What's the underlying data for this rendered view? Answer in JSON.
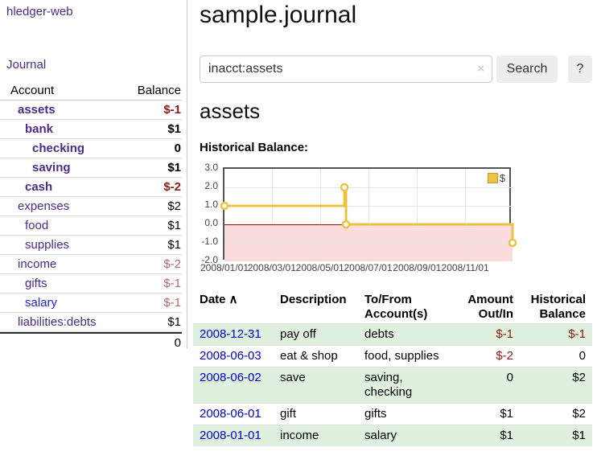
{
  "app": {
    "title": "hledger-web"
  },
  "sidebar": {
    "journal_link": "Journal",
    "table": {
      "account_header": "Account",
      "balance_header": "Balance",
      "rows": [
        {
          "name": "assets",
          "balance": "$-1",
          "level": 1,
          "bold": true,
          "neg": "strong"
        },
        {
          "name": "bank",
          "balance": "$1",
          "level": 2,
          "bold": true,
          "neg": ""
        },
        {
          "name": "checking",
          "balance": "0",
          "level": 3,
          "bold": true,
          "neg": ""
        },
        {
          "name": "saving",
          "balance": "$1",
          "level": 3,
          "bold": true,
          "neg": ""
        },
        {
          "name": "cash",
          "balance": "$-2",
          "level": 2,
          "bold": true,
          "neg": "strong"
        },
        {
          "name": "expenses",
          "balance": "$2",
          "level": 1,
          "bold": false,
          "neg": ""
        },
        {
          "name": "food",
          "balance": "$1",
          "level": 2,
          "bold": false,
          "neg": ""
        },
        {
          "name": "supplies",
          "balance": "$1",
          "level": 2,
          "bold": false,
          "neg": ""
        },
        {
          "name": "income",
          "balance": "$-2",
          "level": 1,
          "bold": false,
          "neg": "soft"
        },
        {
          "name": "gifts",
          "balance": "$-1",
          "level": 2,
          "bold": false,
          "neg": "soft"
        },
        {
          "name": "salary",
          "balance": "$-1",
          "level": 2,
          "bold": false,
          "neg": "soft",
          "link": "blue"
        },
        {
          "name": "liabilities:debts",
          "balance": "$1",
          "level": 1,
          "bold": false,
          "neg": ""
        }
      ],
      "total": "0"
    }
  },
  "header": {
    "title": "sample.journal"
  },
  "search": {
    "value": "inacct:assets",
    "clear_icon": "×",
    "button_label": "Search",
    "help_label": "?"
  },
  "account_page": {
    "title": "assets",
    "chart_label": "Historical Balance:"
  },
  "chart_data": {
    "type": "line",
    "title": "Historical Balance",
    "series": [
      {
        "name": "$",
        "color": "#edc240",
        "step": true,
        "points": [
          {
            "date": "2008-01-01",
            "day": 0,
            "value": 1
          },
          {
            "date": "2008-06-01",
            "day": 152,
            "value": 2
          },
          {
            "date": "2008-06-03",
            "day": 154,
            "value": 0
          },
          {
            "date": "2008-12-31",
            "day": 365,
            "value": -1
          }
        ]
      }
    ],
    "x_axis": {
      "range_days": [
        0,
        365
      ],
      "ticks": [
        {
          "label": "2008/01/01",
          "day": 0
        },
        {
          "label": "2008/03/01",
          "day": 60
        },
        {
          "label": "2008/05/01",
          "day": 121
        },
        {
          "label": "2008/07/01",
          "day": 182
        },
        {
          "label": "2008/09/01",
          "day": 244
        },
        {
          "label": "2008/11/01",
          "day": 305
        }
      ]
    },
    "y_axis": {
      "range": [
        -2,
        3
      ],
      "ticks": [
        "3.0",
        "2.0",
        "1.0",
        "0.0",
        "-1.0",
        "-2.0"
      ]
    },
    "legend": {
      "label": "$",
      "position": "top-right"
    },
    "grid": true,
    "negative_region_color": "#fadcdc",
    "zero_line_color": "#aa0000"
  },
  "transactions": {
    "headers": {
      "date": "Date",
      "sort_icon": "∧",
      "description": "Description",
      "accounts": "To/From Account(s)",
      "amount": "Amount Out/In",
      "balance": "Historical Balance"
    },
    "rows": [
      {
        "date": "2008-12-31",
        "description": "pay off",
        "accounts": "debts",
        "amount": "$-1",
        "amount_negative": true,
        "balance": "$-1",
        "balance_negative": true
      },
      {
        "date": "2008-06-03",
        "description": "eat & shop",
        "accounts": "food, supplies",
        "amount": "$-2",
        "amount_negative": true,
        "balance": "0",
        "balance_negative": false
      },
      {
        "date": "2008-06-02",
        "description": "save",
        "accounts": "saving, checking",
        "amount": "0",
        "amount_negative": false,
        "balance": "$2",
        "balance_negative": false
      },
      {
        "date": "2008-06-01",
        "description": "gift",
        "accounts": "gifts",
        "amount": "$1",
        "amount_negative": false,
        "balance": "$2",
        "balance_negative": false
      },
      {
        "date": "2008-01-01",
        "description": "income",
        "accounts": "salary",
        "amount": "$1",
        "amount_negative": false,
        "balance": "$1",
        "balance_negative": false
      }
    ]
  },
  "colors": {
    "accent_purple": "#4a2b8a",
    "link_blue": "#0000cc",
    "negative": "#8b1a1a",
    "negative_muted": "#b36b6b",
    "row_stripe_green": "#dff0df",
    "series_gold": "#edc240",
    "negative_region_pink": "#fadcdc",
    "zero_line_red": "#aa0000",
    "chart_border": "#545454"
  }
}
